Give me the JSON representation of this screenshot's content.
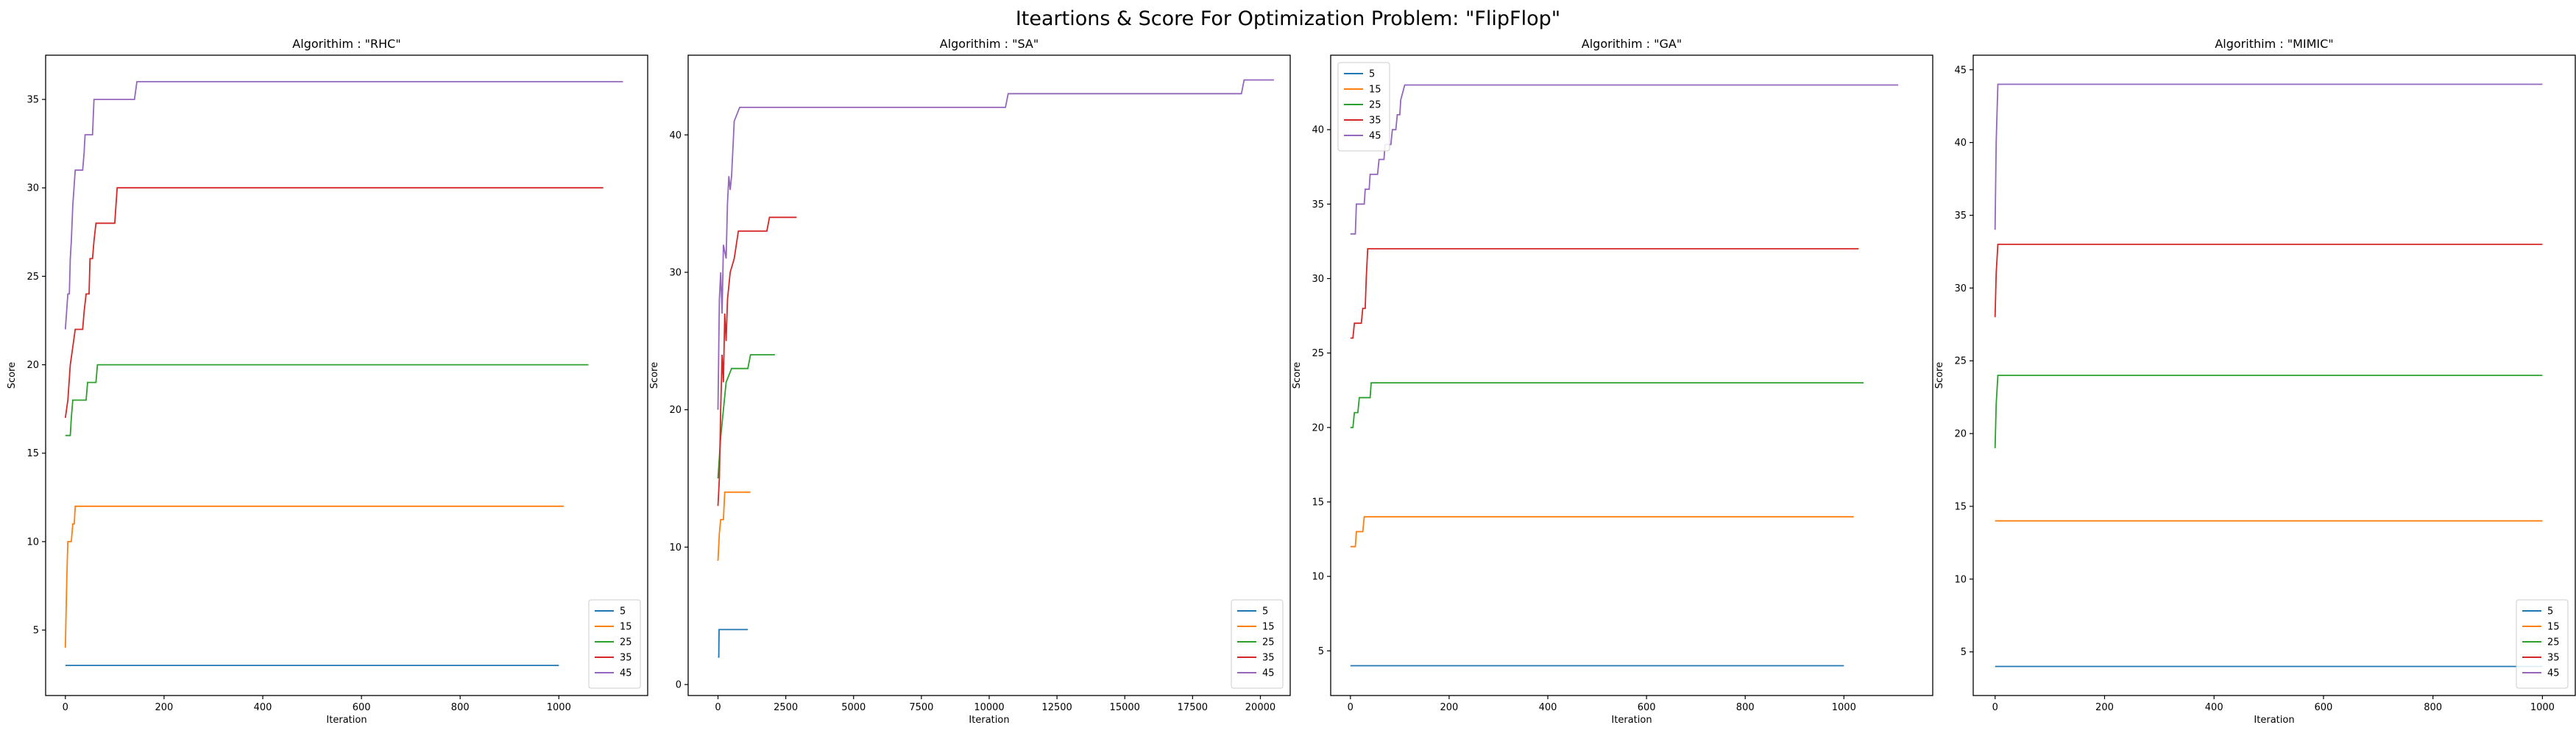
{
  "figure": {
    "suptitle": "Iteartions & Score For Optimization Problem: \"FlipFlop\""
  },
  "series_colors": {
    "5": "#1f77b4",
    "15": "#ff7f0e",
    "25": "#2ca02c",
    "35": "#d62728",
    "45": "#9467bd"
  },
  "chart_data": [
    {
      "type": "line",
      "title": "Algorithim : \"RHC\"",
      "xlabel": "Iteration",
      "ylabel": "Score",
      "xlim": [
        -40,
        1180
      ],
      "ylim": [
        1.3,
        37.5
      ],
      "xticks": [
        0,
        200,
        400,
        600,
        800,
        1000
      ],
      "yticks": [
        5,
        10,
        15,
        20,
        25,
        30,
        35
      ],
      "legend": "lower-right",
      "series": [
        {
          "name": "5",
          "points": [
            [
              0,
              3
            ],
            [
              1000,
              3
            ]
          ]
        },
        {
          "name": "15",
          "points": [
            [
              0,
              4
            ],
            [
              3,
              8
            ],
            [
              5,
              10
            ],
            [
              12,
              10
            ],
            [
              15,
              11
            ],
            [
              18,
              11
            ],
            [
              20,
              12
            ],
            [
              1010,
              12
            ]
          ]
        },
        {
          "name": "25",
          "points": [
            [
              0,
              16
            ],
            [
              10,
              16
            ],
            [
              12,
              17
            ],
            [
              15,
              18
            ],
            [
              40,
              18
            ],
            [
              42,
              18
            ],
            [
              45,
              19
            ],
            [
              60,
              19
            ],
            [
              62,
              19
            ],
            [
              65,
              20
            ],
            [
              1060,
              20
            ]
          ]
        },
        {
          "name": "35",
          "points": [
            [
              0,
              17
            ],
            [
              5,
              18
            ],
            [
              10,
              20
            ],
            [
              15,
              21
            ],
            [
              20,
              22
            ],
            [
              35,
              22
            ],
            [
              38,
              23
            ],
            [
              42,
              24
            ],
            [
              48,
              24
            ],
            [
              50,
              26
            ],
            [
              55,
              26
            ],
            [
              58,
              27
            ],
            [
              62,
              28
            ],
            [
              100,
              28
            ],
            [
              105,
              30
            ],
            [
              1090,
              30
            ]
          ]
        },
        {
          "name": "45",
          "points": [
            [
              0,
              22
            ],
            [
              5,
              24
            ],
            [
              8,
              24
            ],
            [
              10,
              26
            ],
            [
              12,
              27
            ],
            [
              15,
              29
            ],
            [
              20,
              31
            ],
            [
              35,
              31
            ],
            [
              38,
              32
            ],
            [
              40,
              33
            ],
            [
              55,
              33
            ],
            [
              58,
              35
            ],
            [
              140,
              35
            ],
            [
              145,
              36
            ],
            [
              1130,
              36
            ]
          ]
        }
      ]
    },
    {
      "type": "line",
      "title": "Algorithim : \"SA\"",
      "xlabel": "Iteration",
      "ylabel": "Score",
      "xlim": [
        -1100,
        21100
      ],
      "ylim": [
        -0.8,
        45.8
      ],
      "xticks": [
        0,
        2500,
        5000,
        7500,
        10000,
        12500,
        15000,
        17500,
        20000
      ],
      "yticks": [
        0,
        10,
        20,
        30,
        40
      ],
      "legend": "lower-right",
      "series": [
        {
          "name": "5",
          "points": [
            [
              0,
              2
            ],
            [
              30,
              2
            ],
            [
              40,
              4
            ],
            [
              1100,
              4
            ]
          ]
        },
        {
          "name": "15",
          "points": [
            [
              0,
              9
            ],
            [
              50,
              11
            ],
            [
              100,
              12
            ],
            [
              200,
              12
            ],
            [
              250,
              14
            ],
            [
              1200,
              14
            ]
          ]
        },
        {
          "name": "25",
          "points": [
            [
              0,
              15
            ],
            [
              100,
              18
            ],
            [
              200,
              20
            ],
            [
              300,
              22
            ],
            [
              500,
              23
            ],
            [
              1100,
              23
            ],
            [
              1200,
              24
            ],
            [
              2100,
              24
            ]
          ]
        },
        {
          "name": "35",
          "points": [
            [
              0,
              13
            ],
            [
              50,
              15
            ],
            [
              100,
              20
            ],
            [
              150,
              24
            ],
            [
              200,
              22
            ],
            [
              250,
              27
            ],
            [
              300,
              25
            ],
            [
              350,
              28
            ],
            [
              450,
              30
            ],
            [
              600,
              31
            ],
            [
              750,
              33
            ],
            [
              1800,
              33
            ],
            [
              1900,
              34
            ],
            [
              2900,
              34
            ]
          ]
        },
        {
          "name": "45",
          "points": [
            [
              0,
              20
            ],
            [
              50,
              28
            ],
            [
              100,
              30
            ],
            [
              150,
              27
            ],
            [
              200,
              32
            ],
            [
              300,
              31
            ],
            [
              350,
              35
            ],
            [
              400,
              37
            ],
            [
              450,
              36
            ],
            [
              500,
              37
            ],
            [
              550,
              39
            ],
            [
              600,
              41
            ],
            [
              800,
              42
            ],
            [
              10600,
              42
            ],
            [
              10700,
              43
            ],
            [
              19300,
              43
            ],
            [
              19400,
              44
            ],
            [
              20500,
              44
            ]
          ]
        }
      ]
    },
    {
      "type": "line",
      "title": "Algorithim : \"GA\"",
      "xlabel": "Iteration",
      "ylabel": "Score",
      "xlim": [
        -40,
        1180
      ],
      "ylim": [
        2.0,
        45.0
      ],
      "xticks": [
        0,
        200,
        400,
        600,
        800,
        1000
      ],
      "yticks": [
        5,
        10,
        15,
        20,
        25,
        30,
        35,
        40
      ],
      "legend": "upper-left",
      "series": [
        {
          "name": "5",
          "points": [
            [
              0,
              4
            ],
            [
              1000,
              4
            ]
          ]
        },
        {
          "name": "15",
          "points": [
            [
              0,
              12
            ],
            [
              10,
              12
            ],
            [
              12,
              13
            ],
            [
              25,
              13
            ],
            [
              28,
              14
            ],
            [
              1020,
              14
            ]
          ]
        },
        {
          "name": "25",
          "points": [
            [
              0,
              20
            ],
            [
              5,
              20
            ],
            [
              8,
              21
            ],
            [
              15,
              21
            ],
            [
              18,
              22
            ],
            [
              40,
              22
            ],
            [
              42,
              23
            ],
            [
              1040,
              23
            ]
          ]
        },
        {
          "name": "35",
          "points": [
            [
              0,
              26
            ],
            [
              5,
              26
            ],
            [
              8,
              27
            ],
            [
              22,
              27
            ],
            [
              25,
              28
            ],
            [
              30,
              28
            ],
            [
              32,
              30
            ],
            [
              35,
              32
            ],
            [
              1030,
              32
            ]
          ]
        },
        {
          "name": "45",
          "points": [
            [
              0,
              33
            ],
            [
              10,
              33
            ],
            [
              12,
              35
            ],
            [
              28,
              35
            ],
            [
              30,
              36
            ],
            [
              38,
              36
            ],
            [
              40,
              37
            ],
            [
              55,
              37
            ],
            [
              58,
              38
            ],
            [
              68,
              38
            ],
            [
              70,
              39
            ],
            [
              82,
              39
            ],
            [
              85,
              40
            ],
            [
              92,
              40
            ],
            [
              95,
              41
            ],
            [
              100,
              41
            ],
            [
              102,
              42
            ],
            [
              110,
              43
            ],
            [
              1110,
              43
            ]
          ]
        }
      ]
    },
    {
      "type": "line",
      "title": "Algorithim : \"MIMIC\"",
      "xlabel": "Iteration",
      "ylabel": "Score",
      "xlim": [
        -40,
        1060
      ],
      "ylim": [
        2.0,
        46.0
      ],
      "xticks": [
        0,
        200,
        400,
        600,
        800,
        1000
      ],
      "yticks": [
        5,
        10,
        15,
        20,
        25,
        30,
        35,
        40,
        45
      ],
      "legend": "lower-right",
      "series": [
        {
          "name": "5",
          "points": [
            [
              0,
              4
            ],
            [
              1000,
              4
            ]
          ]
        },
        {
          "name": "15",
          "points": [
            [
              0,
              14
            ],
            [
              1000,
              14
            ]
          ]
        },
        {
          "name": "25",
          "points": [
            [
              0,
              19
            ],
            [
              2,
              22
            ],
            [
              5,
              24
            ],
            [
              1000,
              24
            ]
          ]
        },
        {
          "name": "35",
          "points": [
            [
              0,
              28
            ],
            [
              2,
              31
            ],
            [
              5,
              33
            ],
            [
              1000,
              33
            ]
          ]
        },
        {
          "name": "45",
          "points": [
            [
              0,
              34
            ],
            [
              2,
              40
            ],
            [
              5,
              44
            ],
            [
              1000,
              44
            ]
          ]
        }
      ]
    }
  ]
}
